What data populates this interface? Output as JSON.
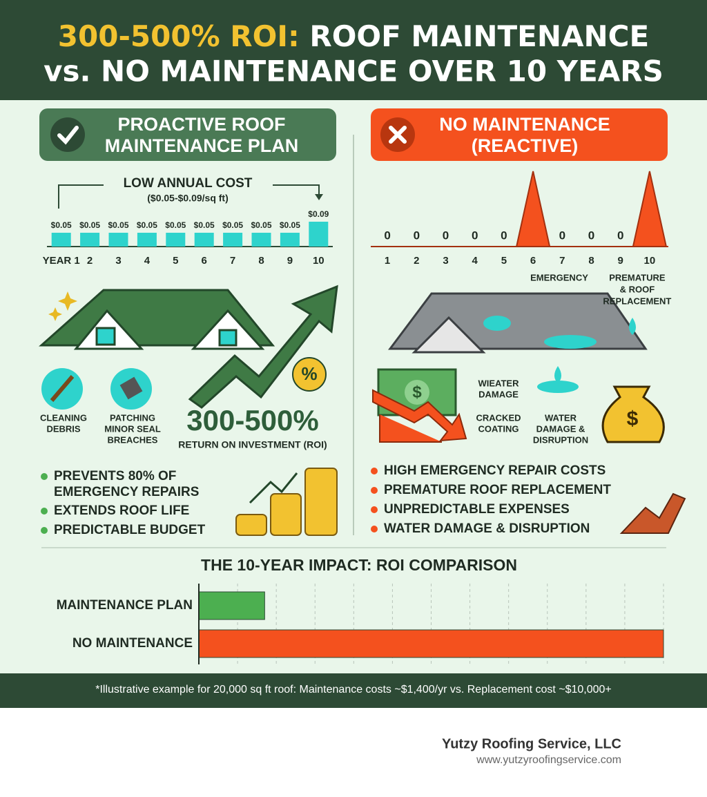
{
  "header": {
    "title_highlight": "300-500% ROI:",
    "title_rest": "ROOF MAINTENANCE",
    "title_line2": "vs. NO MAINTENANCE OVER 10 YEARS"
  },
  "left": {
    "heading": [
      "PROACTIVE ROOF",
      "MAINTENANCE PLAN"
    ],
    "icon_labels": [
      [
        "CLEANING",
        "DEBRIS"
      ],
      [
        "PATCHING",
        "MINOR SEAL",
        "BREACHES"
      ]
    ],
    "badge": "%",
    "roi": "300-500%",
    "roi_caption": "RETURN ON INVESTMENT (ROI)",
    "bullets": [
      [
        "PREVENTS 80% OF",
        "EMERGENCY REPAIRS"
      ],
      [
        "EXTENDS ROOF LIFE"
      ],
      [
        "PREDICTABLE BUDGET"
      ]
    ]
  },
  "right": {
    "heading": [
      "NO MAINTENANCE",
      "(REACTIVE)"
    ],
    "labels": [
      [
        "WIEATER",
        "DAMAGE"
      ],
      [
        "CRACKED",
        "COATING"
      ],
      [
        "WATER",
        "DAMAGE &",
        "DISRUPTION"
      ]
    ],
    "bill_symbol": "$",
    "bag_symbol": "$",
    "bullets": [
      "HIGH EMERGENCY REPAIR COSTS",
      "PREMATURE ROOF REPLACEMENT",
      "UNPREDICTABLE EXPENSES",
      "WATER DAMAGE & DISRUPTION"
    ]
  },
  "chart_data": [
    {
      "type": "bar",
      "title": "LOW ANNUAL COST",
      "subtitle": "($0.05-$0.09/sq ft)",
      "categories": [
        "YEAR 1",
        "2",
        "3",
        "4",
        "5",
        "6",
        "7",
        "8",
        "9",
        "10"
      ],
      "values": [
        0.05,
        0.05,
        0.05,
        0.05,
        0.05,
        0.05,
        0.05,
        0.05,
        0.05,
        0.09
      ],
      "value_labels": [
        "$0.05",
        "$0.05",
        "$0.05",
        "$0.05",
        "$0.05",
        "$0.05",
        "$0.05",
        "$0.05",
        "$0.05",
        "$0.09"
      ],
      "ylim": [
        0,
        0.09
      ],
      "color": "#2ed3cc"
    },
    {
      "type": "spike",
      "categories": [
        "1",
        "2",
        "3",
        "4",
        "5",
        "6",
        "7",
        "8",
        "9",
        "10"
      ],
      "values": [
        0,
        0,
        0,
        0,
        0,
        10,
        0,
        0,
        0,
        10
      ],
      "value_labels": [
        "0",
        "0",
        "0",
        "0",
        "0",
        null,
        "0",
        "0",
        "0",
        null
      ],
      "annotations": [
        {
          "category": "6",
          "text": [
            "EMERGENCY"
          ]
        },
        {
          "category": "10",
          "text": [
            "PREMATURE",
            "& ROOF",
            "REPLACEMENT"
          ]
        }
      ],
      "ylim": [
        0,
        10
      ],
      "color": "#f4511e"
    },
    {
      "type": "hbar",
      "title": "THE 10-YEAR IMPACT: ROI COMPARISON",
      "categories": [
        "MAINTENANCE PLAN",
        "NO MAINTENANCE"
      ],
      "values": [
        1.7,
        12
      ],
      "colors": [
        "#4caf50",
        "#f4511e"
      ],
      "xlim": [
        0,
        12
      ],
      "xticks": [
        0,
        1,
        2,
        3,
        4,
        5,
        6,
        7,
        8,
        9,
        10,
        11,
        12
      ],
      "grid": true
    }
  ],
  "footer": {
    "note": "*Illustrative example for 20,000 sq ft roof: Maintenance costs ~$1,400/yr vs. Replacement cost ~$10,000+",
    "company": "Yutzy Roofing Service, LLC",
    "url": "www.yutzyroofingservice.com"
  }
}
